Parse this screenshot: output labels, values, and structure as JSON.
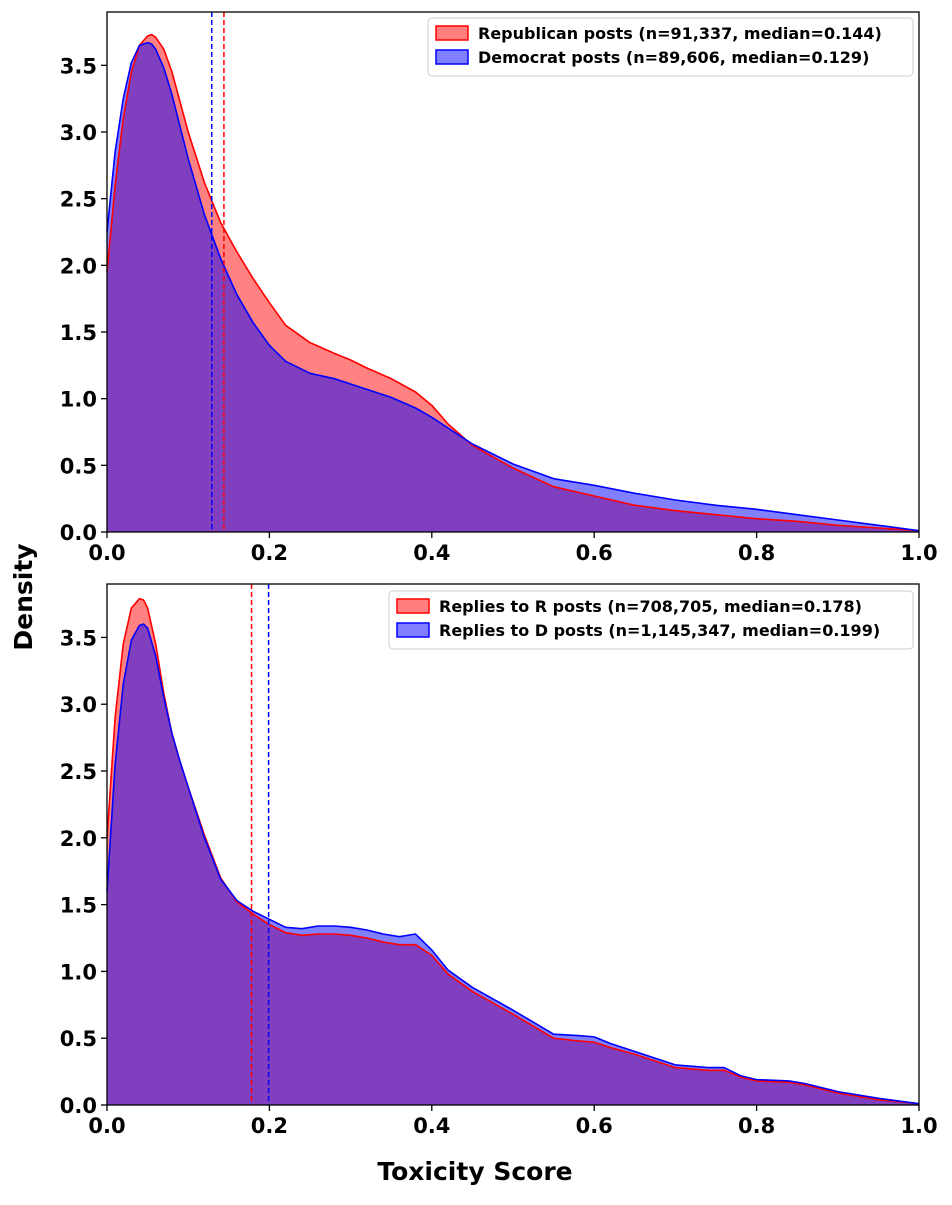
{
  "figure": {
    "ylabel": "Density",
    "xlabel": "Toxicity Score"
  },
  "chart_data": [
    {
      "type": "area",
      "xlim": [
        0.0,
        1.0
      ],
      "ylim": [
        0.0,
        3.9
      ],
      "xticks": [
        "0.0",
        "0.2",
        "0.4",
        "0.6",
        "0.8",
        "1.0"
      ],
      "yticks": [
        "0.0",
        "0.5",
        "1.0",
        "1.5",
        "2.0",
        "2.5",
        "3.0",
        "3.5"
      ],
      "legend_position": "top-right",
      "grid": false,
      "series": [
        {
          "name": "Republican posts (n=91,337, median=0.144)",
          "color": "#ff0000",
          "fill": "#ff7f7f",
          "median": 0.144,
          "x": [
            0.0,
            0.01,
            0.02,
            0.03,
            0.04,
            0.05,
            0.055,
            0.06,
            0.07,
            0.08,
            0.1,
            0.12,
            0.14,
            0.16,
            0.18,
            0.2,
            0.22,
            0.25,
            0.28,
            0.3,
            0.32,
            0.35,
            0.38,
            0.4,
            0.42,
            0.45,
            0.5,
            0.55,
            0.6,
            0.65,
            0.7,
            0.75,
            0.8,
            0.85,
            0.9,
            0.95,
            1.0
          ],
          "y": [
            1.95,
            2.6,
            3.1,
            3.45,
            3.65,
            3.72,
            3.73,
            3.71,
            3.62,
            3.45,
            3.0,
            2.62,
            2.32,
            2.1,
            1.9,
            1.72,
            1.55,
            1.42,
            1.34,
            1.29,
            1.23,
            1.15,
            1.05,
            0.95,
            0.81,
            0.65,
            0.48,
            0.34,
            0.27,
            0.2,
            0.16,
            0.13,
            0.1,
            0.08,
            0.05,
            0.03,
            0.01
          ]
        },
        {
          "name": "Democrat posts (n=89,606, median=0.129)",
          "color": "#0000ff",
          "fill": "#7f7fff",
          "median": 0.129,
          "x": [
            0.0,
            0.01,
            0.02,
            0.03,
            0.04,
            0.05,
            0.055,
            0.06,
            0.07,
            0.08,
            0.1,
            0.12,
            0.14,
            0.16,
            0.18,
            0.2,
            0.22,
            0.25,
            0.28,
            0.3,
            0.32,
            0.35,
            0.38,
            0.4,
            0.42,
            0.45,
            0.5,
            0.55,
            0.6,
            0.65,
            0.7,
            0.75,
            0.8,
            0.85,
            0.9,
            0.95,
            1.0
          ],
          "y": [
            2.25,
            2.85,
            3.25,
            3.52,
            3.65,
            3.67,
            3.66,
            3.62,
            3.48,
            3.28,
            2.8,
            2.38,
            2.05,
            1.78,
            1.57,
            1.4,
            1.28,
            1.19,
            1.15,
            1.11,
            1.07,
            1.01,
            0.93,
            0.86,
            0.78,
            0.66,
            0.51,
            0.4,
            0.35,
            0.29,
            0.24,
            0.2,
            0.17,
            0.13,
            0.09,
            0.05,
            0.01
          ]
        }
      ]
    },
    {
      "type": "area",
      "xlim": [
        0.0,
        1.0
      ],
      "ylim": [
        0.0,
        3.9
      ],
      "xticks": [
        "0.0",
        "0.2",
        "0.4",
        "0.6",
        "0.8",
        "1.0"
      ],
      "yticks": [
        "0.0",
        "0.5",
        "1.0",
        "1.5",
        "2.0",
        "2.5",
        "3.0",
        "3.5"
      ],
      "legend_position": "top-right",
      "grid": false,
      "series": [
        {
          "name": "Replies to R posts (n=708,705, median=0.178)",
          "color": "#ff0000",
          "fill": "#ff7f7f",
          "median": 0.178,
          "x": [
            0.0,
            0.01,
            0.02,
            0.03,
            0.04,
            0.045,
            0.05,
            0.06,
            0.07,
            0.08,
            0.09,
            0.1,
            0.12,
            0.14,
            0.16,
            0.18,
            0.2,
            0.22,
            0.24,
            0.26,
            0.28,
            0.3,
            0.32,
            0.34,
            0.36,
            0.38,
            0.4,
            0.42,
            0.45,
            0.5,
            0.55,
            0.58,
            0.6,
            0.62,
            0.65,
            0.7,
            0.74,
            0.76,
            0.78,
            0.8,
            0.84,
            0.86,
            0.9,
            0.95,
            1.0
          ],
          "y": [
            2.0,
            2.9,
            3.45,
            3.72,
            3.79,
            3.78,
            3.72,
            3.45,
            3.08,
            2.78,
            2.57,
            2.38,
            2.02,
            1.7,
            1.52,
            1.43,
            1.35,
            1.29,
            1.27,
            1.28,
            1.28,
            1.27,
            1.25,
            1.22,
            1.2,
            1.2,
            1.12,
            0.98,
            0.85,
            0.68,
            0.5,
            0.48,
            0.47,
            0.43,
            0.38,
            0.28,
            0.26,
            0.26,
            0.21,
            0.18,
            0.17,
            0.15,
            0.09,
            0.04,
            0.01
          ]
        },
        {
          "name": "Replies to D posts (n=1,145,347, median=0.199)",
          "color": "#0000ff",
          "fill": "#7f7fff",
          "median": 0.199,
          "x": [
            0.0,
            0.01,
            0.02,
            0.03,
            0.04,
            0.045,
            0.05,
            0.06,
            0.07,
            0.08,
            0.09,
            0.1,
            0.12,
            0.14,
            0.16,
            0.18,
            0.2,
            0.22,
            0.24,
            0.26,
            0.28,
            0.3,
            0.32,
            0.34,
            0.36,
            0.38,
            0.4,
            0.42,
            0.45,
            0.5,
            0.55,
            0.58,
            0.6,
            0.62,
            0.65,
            0.7,
            0.74,
            0.76,
            0.78,
            0.8,
            0.84,
            0.86,
            0.9,
            0.95,
            1.0
          ],
          "y": [
            1.6,
            2.55,
            3.15,
            3.48,
            3.59,
            3.6,
            3.57,
            3.36,
            3.05,
            2.78,
            2.57,
            2.38,
            2.0,
            1.69,
            1.53,
            1.45,
            1.39,
            1.33,
            1.32,
            1.34,
            1.34,
            1.33,
            1.31,
            1.28,
            1.26,
            1.28,
            1.16,
            1.01,
            0.88,
            0.71,
            0.53,
            0.52,
            0.51,
            0.46,
            0.4,
            0.3,
            0.28,
            0.28,
            0.22,
            0.19,
            0.18,
            0.16,
            0.1,
            0.05,
            0.01
          ]
        }
      ]
    }
  ]
}
